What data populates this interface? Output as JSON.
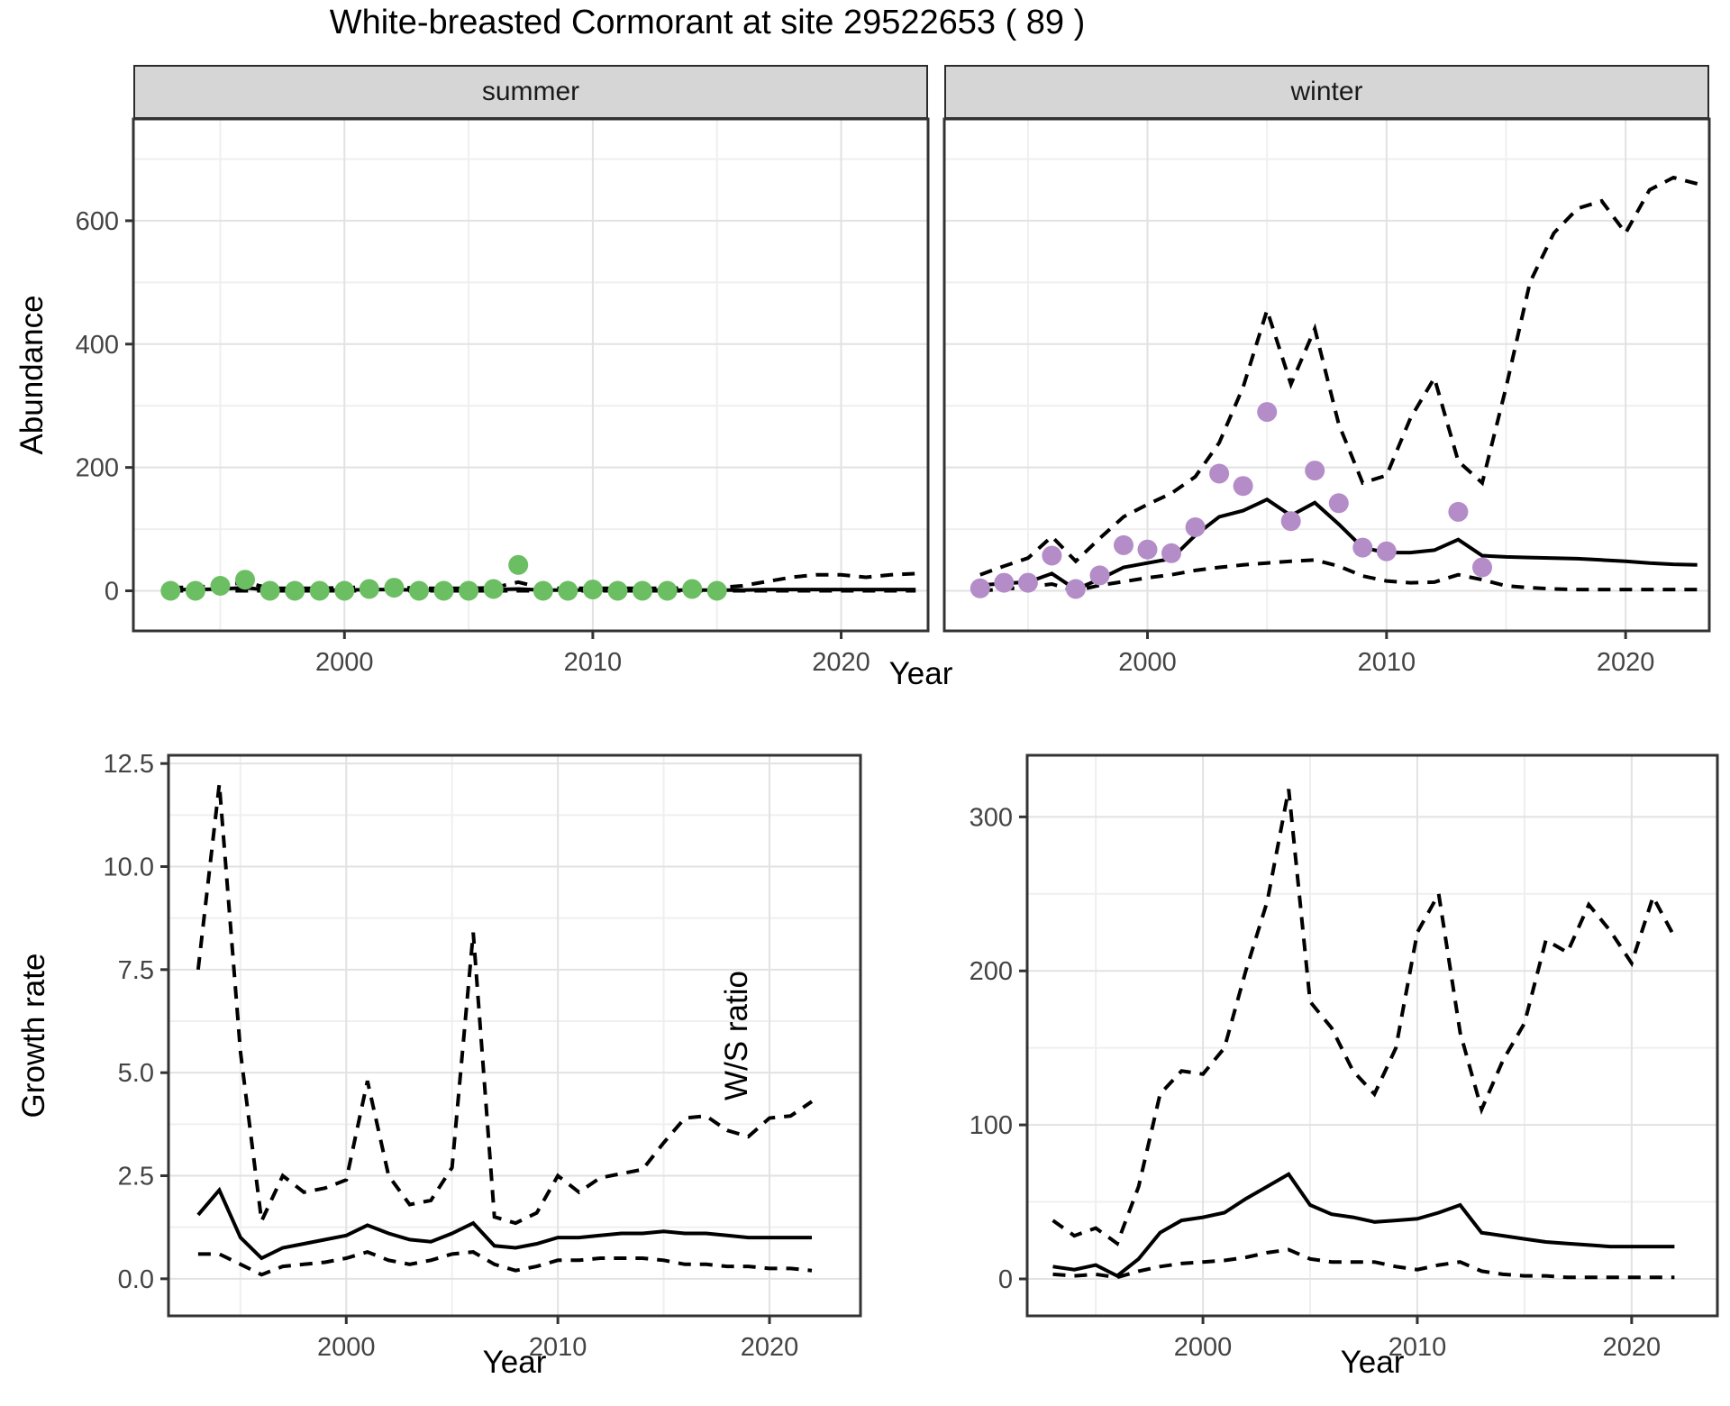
{
  "title": "White-breasted Cormorant at site 29522653 ( 89 )",
  "facets": {
    "summer_label": "summer",
    "winter_label": "winter"
  },
  "axis_titles": {
    "abundance": "Abundance",
    "year_top": "Year",
    "growth_rate": "Growth rate",
    "year_bottom_left": "Year",
    "ws_ratio": "W/S ratio",
    "year_bottom_right": "Year"
  },
  "colors": {
    "summer_points": "#6cbe63",
    "winter_points": "#b48cc8",
    "line": "#000000",
    "strip_bg": "#d6d6d6",
    "panel_border": "#333333",
    "grid_major": "#e2e2e2",
    "grid_minor": "#efefef",
    "tick_label": "#444444"
  },
  "chart_data": [
    {
      "id": "summer",
      "type": "line",
      "title": "summer",
      "xlabel": "Year",
      "ylabel": "Abundance",
      "xlim": [
        1991.5,
        2023.5
      ],
      "ylim": [
        -65,
        765
      ],
      "grid": true,
      "yaxis": true,
      "xticks": {
        "major": [
          2000,
          2010,
          2020
        ],
        "minor": [
          1995,
          2005,
          2015
        ],
        "labels": [
          "2000",
          "2010",
          "2020"
        ]
      },
      "yticks": {
        "major": [
          0,
          200,
          400,
          600
        ],
        "minor": [
          100,
          300,
          500,
          700
        ],
        "labels": [
          "0",
          "200",
          "400",
          "600"
        ]
      },
      "x": [
        1993,
        1994,
        1995,
        1996,
        1997,
        1998,
        1999,
        2000,
        2001,
        2002,
        2003,
        2004,
        2005,
        2006,
        2007,
        2008,
        2009,
        2010,
        2011,
        2012,
        2013,
        2014,
        2015,
        2016,
        2017,
        2018,
        2019,
        2020,
        2021,
        2022,
        2023
      ],
      "series": [
        {
          "name": "median",
          "style": "solid",
          "values": [
            2,
            2,
            3,
            5,
            1,
            1,
            1,
            1,
            2,
            2,
            1,
            1,
            1,
            2,
            3,
            1,
            1,
            1,
            1,
            1,
            1,
            1,
            1,
            1,
            2,
            2,
            2,
            2,
            2,
            2,
            2
          ]
        },
        {
          "name": "upper_ci",
          "style": "dashed",
          "values": [
            5,
            6,
            8,
            14,
            4,
            4,
            4,
            5,
            6,
            6,
            4,
            4,
            4,
            5,
            14,
            4,
            4,
            4,
            4,
            4,
            4,
            5,
            5,
            8,
            15,
            22,
            26,
            26,
            22,
            26,
            28
          ]
        },
        {
          "name": "lower_ci",
          "style": "dashed",
          "values": [
            0,
            0,
            0,
            0,
            0,
            0,
            0,
            0,
            0,
            0,
            0,
            0,
            0,
            0,
            0,
            0,
            0,
            0,
            0,
            0,
            0,
            0,
            0,
            0,
            0,
            0,
            0,
            0,
            0,
            0,
            0
          ]
        }
      ],
      "points": {
        "name": "observed_counts",
        "color": "#6cbe63",
        "x": [
          1993,
          1994,
          1995,
          1996,
          1997,
          1998,
          1999,
          2000,
          2001,
          2002,
          2003,
          2004,
          2005,
          2006,
          2007,
          2008,
          2009,
          2010,
          2011,
          2012,
          2013,
          2014,
          2015
        ],
        "y": [
          0,
          0,
          8,
          18,
          0,
          0,
          0,
          0,
          3,
          5,
          0,
          0,
          0,
          3,
          42,
          0,
          0,
          2,
          0,
          0,
          0,
          3,
          0
        ]
      }
    },
    {
      "id": "winter",
      "type": "line",
      "title": "winter",
      "xlabel": "Year",
      "ylabel": "Abundance",
      "xlim": [
        1991.5,
        2023.5
      ],
      "ylim": [
        -65,
        765
      ],
      "grid": true,
      "yaxis": false,
      "xticks": {
        "major": [
          2000,
          2010,
          2020
        ],
        "minor": [
          1995,
          2005,
          2015
        ],
        "labels": [
          "2000",
          "2010",
          "2020"
        ]
      },
      "yticks": {
        "major": [
          0,
          200,
          400,
          600
        ],
        "minor": [
          100,
          300,
          500,
          700
        ],
        "labels": [
          "0",
          "200",
          "400",
          "600"
        ]
      },
      "x": [
        1993,
        1994,
        1995,
        1996,
        1997,
        1998,
        1999,
        2000,
        2001,
        2002,
        2003,
        2004,
        2005,
        2006,
        2007,
        2008,
        2009,
        2010,
        2011,
        2012,
        2013,
        2014,
        2015,
        2016,
        2017,
        2018,
        2019,
        2020,
        2021,
        2022,
        2023
      ],
      "series": [
        {
          "name": "median",
          "style": "solid",
          "values": [
            9,
            12,
            14,
            28,
            2,
            19,
            38,
            45,
            52,
            90,
            120,
            130,
            148,
            122,
            143,
            108,
            70,
            62,
            62,
            66,
            83,
            57,
            55,
            54,
            53,
            52,
            50,
            48,
            45,
            43,
            42
          ]
        },
        {
          "name": "upper_ci",
          "style": "dashed",
          "values": [
            26,
            40,
            53,
            88,
            48,
            85,
            120,
            140,
            158,
            185,
            240,
            330,
            455,
            335,
            425,
            270,
            175,
            187,
            280,
            345,
            210,
            175,
            330,
            500,
            580,
            620,
            632,
            580,
            650,
            670,
            660
          ]
        },
        {
          "name": "lower_ci",
          "style": "dashed",
          "values": [
            0,
            3,
            6,
            11,
            0,
            9,
            15,
            21,
            26,
            33,
            38,
            42,
            45,
            48,
            50,
            40,
            24,
            16,
            13,
            14,
            26,
            18,
            8,
            5,
            3,
            2,
            2,
            2,
            2,
            2,
            2
          ]
        }
      ],
      "points": {
        "name": "observed_counts",
        "color": "#b48cc8",
        "x": [
          1993,
          1994,
          1995,
          1996,
          1997,
          1998,
          1999,
          2000,
          2001,
          2002,
          2003,
          2004,
          2005,
          2006,
          2007,
          2008,
          2009,
          2010,
          2013,
          2014
        ],
        "y": [
          4,
          13,
          13,
          57,
          3,
          25,
          74,
          67,
          61,
          103,
          190,
          170,
          290,
          113,
          195,
          142,
          70,
          64,
          128,
          38
        ]
      }
    },
    {
      "id": "growth",
      "type": "line",
      "title": "",
      "xlabel": "Year",
      "ylabel": "Growth rate",
      "xlim": [
        1991.6,
        2024.3
      ],
      "ylim": [
        -0.9,
        12.7
      ],
      "grid": true,
      "yaxis": true,
      "xticks": {
        "major": [
          2000,
          2010,
          2020
        ],
        "minor": [
          1995,
          2005,
          2015
        ],
        "labels": [
          "2000",
          "2010",
          "2020"
        ]
      },
      "yticks": {
        "major": [
          0,
          2.5,
          5,
          7.5,
          10,
          12.5
        ],
        "minor": [
          1.25,
          3.75,
          6.25,
          8.75,
          11.25
        ],
        "labels": [
          "0.0",
          "2.5",
          "5.0",
          "7.5",
          "10.0",
          "12.5"
        ]
      },
      "x": [
        1993,
        1994,
        1995,
        1996,
        1997,
        1998,
        1999,
        2000,
        2001,
        2002,
        2003,
        2004,
        2005,
        2006,
        2007,
        2008,
        2009,
        2010,
        2011,
        2012,
        2013,
        2014,
        2015,
        2016,
        2017,
        2018,
        2019,
        2020,
        2021,
        2022
      ],
      "series": [
        {
          "name": "median",
          "style": "solid",
          "values": [
            1.55,
            2.15,
            1.0,
            0.5,
            0.75,
            0.85,
            0.95,
            1.05,
            1.3,
            1.1,
            0.95,
            0.9,
            1.1,
            1.35,
            0.8,
            0.75,
            0.85,
            1.0,
            1.0,
            1.05,
            1.1,
            1.1,
            1.15,
            1.1,
            1.1,
            1.05,
            1.0,
            1.0,
            1.0,
            1.0
          ]
        },
        {
          "name": "upper_ci",
          "style": "dashed",
          "values": [
            7.5,
            12.0,
            5.5,
            1.4,
            2.5,
            2.1,
            2.2,
            2.4,
            4.8,
            2.5,
            1.8,
            1.9,
            2.7,
            8.4,
            1.5,
            1.35,
            1.6,
            2.5,
            2.1,
            2.45,
            2.55,
            2.65,
            3.3,
            3.9,
            3.95,
            3.6,
            3.45,
            3.9,
            3.95,
            4.3
          ]
        },
        {
          "name": "lower_ci",
          "style": "dashed",
          "values": [
            0.6,
            0.6,
            0.35,
            0.1,
            0.3,
            0.35,
            0.4,
            0.5,
            0.65,
            0.45,
            0.35,
            0.45,
            0.6,
            0.65,
            0.35,
            0.2,
            0.3,
            0.45,
            0.45,
            0.5,
            0.5,
            0.5,
            0.45,
            0.35,
            0.35,
            0.3,
            0.3,
            0.25,
            0.25,
            0.2
          ]
        }
      ]
    },
    {
      "id": "ws",
      "type": "line",
      "title": "",
      "xlabel": "Year",
      "ylabel": "W/S ratio",
      "xlim": [
        1991.8,
        2024.0
      ],
      "ylim": [
        -24,
        340
      ],
      "grid": true,
      "yaxis": true,
      "xticks": {
        "major": [
          2000,
          2010,
          2020
        ],
        "minor": [
          1995,
          2005,
          2015
        ],
        "labels": [
          "2000",
          "2010",
          "2020"
        ]
      },
      "yticks": {
        "major": [
          0,
          100,
          200,
          300
        ],
        "minor": [
          50,
          150,
          250
        ],
        "labels": [
          "0",
          "100",
          "200",
          "300"
        ]
      },
      "x": [
        1993,
        1994,
        1995,
        1996,
        1997,
        1998,
        1999,
        2000,
        2001,
        2002,
        2003,
        2004,
        2005,
        2006,
        2007,
        2008,
        2009,
        2010,
        2011,
        2012,
        2013,
        2014,
        2015,
        2016,
        2017,
        2018,
        2019,
        2020,
        2021,
        2022
      ],
      "series": [
        {
          "name": "median",
          "style": "solid",
          "values": [
            8,
            6,
            9,
            2,
            13,
            30,
            38,
            40,
            43,
            52,
            60,
            68,
            48,
            42,
            40,
            37,
            38,
            39,
            43,
            48,
            30,
            28,
            26,
            24,
            23,
            22,
            21,
            21,
            21,
            21
          ]
        },
        {
          "name": "upper_ci",
          "style": "dashed",
          "values": [
            38,
            28,
            33,
            23,
            60,
            120,
            135,
            133,
            150,
            200,
            245,
            318,
            180,
            163,
            135,
            120,
            150,
            225,
            250,
            160,
            110,
            142,
            166,
            220,
            212,
            243,
            226,
            205,
            248,
            222
          ]
        },
        {
          "name": "lower_ci",
          "style": "dashed",
          "values": [
            3,
            2,
            3,
            1,
            5,
            8,
            10,
            11,
            12,
            14,
            17,
            19,
            13,
            11,
            11,
            11,
            8,
            6,
            9,
            11,
            5,
            3,
            2,
            2,
            1,
            1,
            1,
            1,
            1,
            1
          ]
        }
      ]
    }
  ]
}
